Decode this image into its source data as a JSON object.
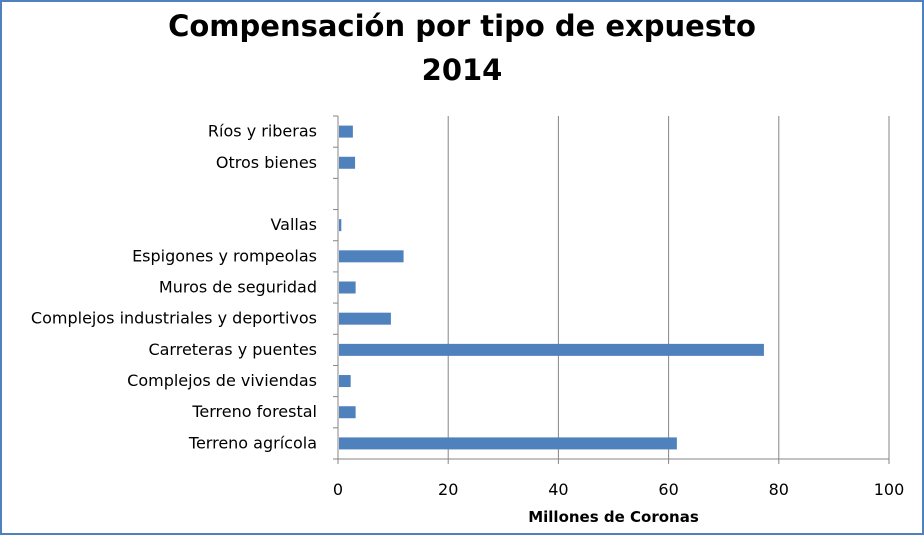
{
  "chart_data": {
    "type": "bar",
    "orientation": "horizontal",
    "title_lines": [
      "Compensación por tipo de expuesto",
      "2014"
    ],
    "xlabel": "Millones de Coronas",
    "ylabel": "",
    "xlim": [
      0,
      100
    ],
    "xticks": [
      0,
      20,
      40,
      60,
      80,
      100
    ],
    "grid": "vertical",
    "legend": "none",
    "bar_color": "#4f81bd",
    "categories": [
      "Terreno agrícola",
      "Terreno forestal",
      "Complejos de viviendas",
      "Carreteras y puentes",
      "Complejos industriales y deportivos",
      "Muros de seguridad",
      "Espigones y rompeolas",
      "Vallas",
      "",
      "Otros bienes",
      "Ríos y riberas"
    ],
    "values": [
      61.5,
      3.2,
      2.3,
      77.3,
      9.6,
      3.2,
      11.9,
      0.6,
      null,
      3.1,
      2.7
    ]
  }
}
